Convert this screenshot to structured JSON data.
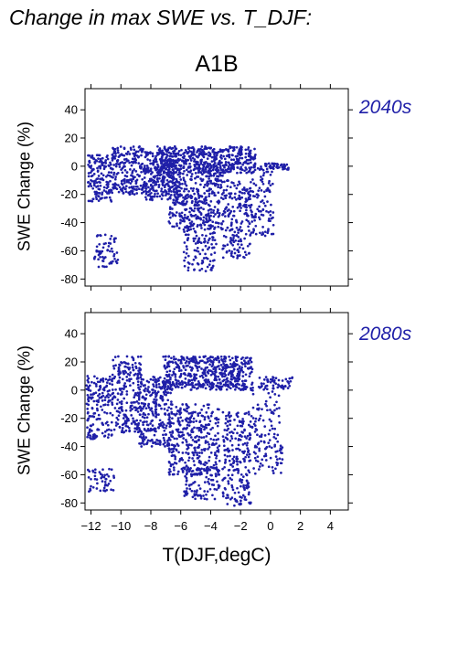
{
  "header": {
    "title": "Change in max SWE vs. T_DJF:",
    "scenario": "A1B"
  },
  "chart_data": [
    {
      "type": "scatter",
      "panel": "2040s",
      "ylabel": "SWE Change (%)",
      "xlabel": "",
      "xlim": [
        -12.4,
        5.2
      ],
      "ylim": [
        -85,
        55
      ],
      "xticks": [
        -12,
        -10,
        -8,
        -6,
        -4,
        -2,
        0,
        2,
        4
      ],
      "yticks": [
        40,
        20,
        0,
        -20,
        -40,
        -60,
        -80
      ],
      "show_x_tick_labels": false,
      "grid": false,
      "color": "#1f1fa8",
      "seed": 7,
      "clusters": [
        {
          "x": [
            -12.2,
            -10.6
          ],
          "y": [
            -25,
            8
          ],
          "n": 150
        },
        {
          "x": [
            -11.8,
            -10.2
          ],
          "y": [
            -72,
            -48
          ],
          "n": 60
        },
        {
          "x": [
            -10.6,
            -8.4
          ],
          "y": [
            -20,
            14
          ],
          "n": 220
        },
        {
          "x": [
            -8.4,
            -6.2
          ],
          "y": [
            -24,
            10
          ],
          "n": 260
        },
        {
          "x": [
            -7.6,
            -1.0
          ],
          "y": [
            -5,
            14
          ],
          "n": 520
        },
        {
          "x": [
            -6.8,
            -3.2
          ],
          "y": [
            -45,
            -5
          ],
          "n": 340
        },
        {
          "x": [
            -5.8,
            -3.6
          ],
          "y": [
            -76,
            -40
          ],
          "n": 110
        },
        {
          "x": [
            -3.2,
            -1.3
          ],
          "y": [
            -66,
            -10
          ],
          "n": 200
        },
        {
          "x": [
            -1.3,
            0.2
          ],
          "y": [
            -50,
            2
          ],
          "n": 110
        },
        {
          "x": [
            -0.4,
            1.2
          ],
          "y": [
            -3,
            2
          ],
          "n": 40
        }
      ]
    },
    {
      "type": "scatter",
      "panel": "2080s",
      "ylabel": "SWE Change (%)",
      "xlabel": "T(DJF,degC)",
      "xlim": [
        -12.4,
        5.2
      ],
      "ylim": [
        -85,
        55
      ],
      "xticks": [
        -12,
        -10,
        -8,
        -6,
        -4,
        -2,
        0,
        2,
        4
      ],
      "yticks": [
        40,
        20,
        0,
        -20,
        -40,
        -60,
        -80
      ],
      "show_x_tick_labels": true,
      "grid": false,
      "color": "#1f1fa8",
      "seed": 23,
      "clusters": [
        {
          "x": [
            -12.3,
            -10.6
          ],
          "y": [
            -35,
            10
          ],
          "n": 160
        },
        {
          "x": [
            -12.2,
            -10.3
          ],
          "y": [
            -72,
            -55
          ],
          "n": 50
        },
        {
          "x": [
            -10.6,
            -8.6
          ],
          "y": [
            -30,
            24
          ],
          "n": 230
        },
        {
          "x": [
            -8.8,
            -6.6
          ],
          "y": [
            -40,
            10
          ],
          "n": 260
        },
        {
          "x": [
            -7.2,
            -1.2
          ],
          "y": [
            0,
            24
          ],
          "n": 520
        },
        {
          "x": [
            -6.8,
            -3.4
          ],
          "y": [
            -60,
            -10
          ],
          "n": 340
        },
        {
          "x": [
            -5.8,
            -3.4
          ],
          "y": [
            -78,
            -55
          ],
          "n": 90
        },
        {
          "x": [
            -3.2,
            -1.3
          ],
          "y": [
            -82,
            -15
          ],
          "n": 220
        },
        {
          "x": [
            -1.3,
            0.8
          ],
          "y": [
            -60,
            10
          ],
          "n": 140
        },
        {
          "x": [
            -0.3,
            1.5
          ],
          "y": [
            0,
            9
          ],
          "n": 40
        }
      ]
    }
  ]
}
